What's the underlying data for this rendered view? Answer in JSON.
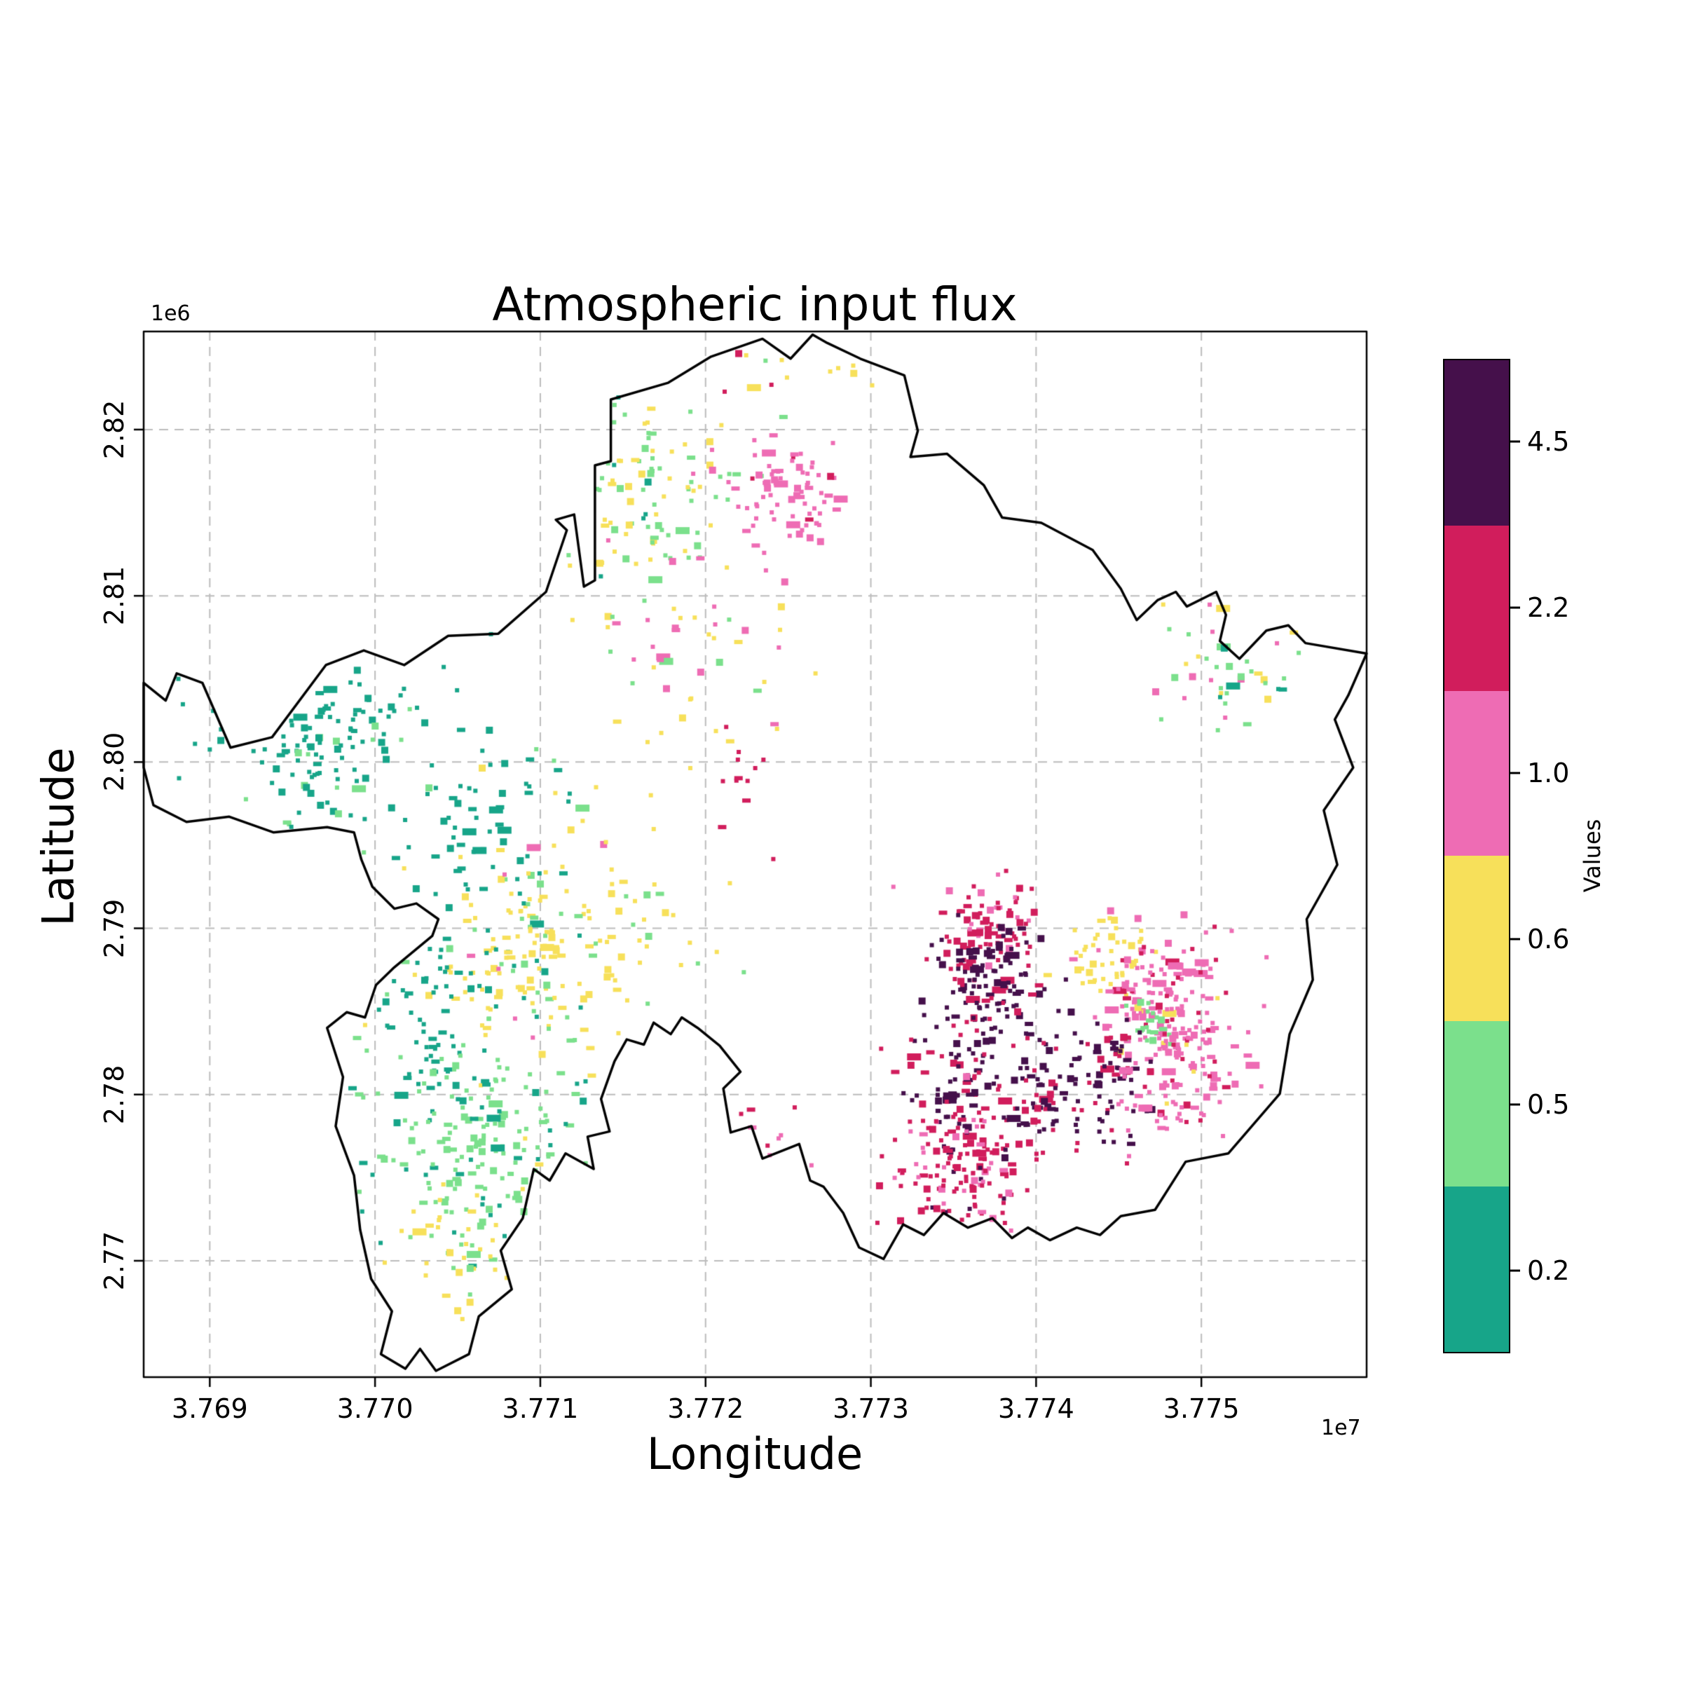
{
  "chart_data": {
    "type": "heatmap",
    "title": "Atmospheric input flux",
    "xlabel": "Longitude",
    "ylabel": "Latitude",
    "x_offset_text": "1e7",
    "y_offset_text": "1e6",
    "xlim": [
      3.7686,
      3.776
    ],
    "ylim": [
      2.763,
      2.8259
    ],
    "xticks": [
      3.769,
      3.77,
      3.771,
      3.772,
      3.773,
      3.774,
      3.775
    ],
    "xtick_labels": [
      "3.769",
      "3.770",
      "3.771",
      "3.772",
      "3.773",
      "3.774",
      "3.775"
    ],
    "yticks": [
      2.77,
      2.78,
      2.79,
      2.8,
      2.81,
      2.82
    ],
    "ytick_labels": [
      "2.77",
      "2.78",
      "2.79",
      "2.80",
      "2.81",
      "2.82"
    ],
    "grid": true,
    "colorbar": {
      "label": "Values",
      "segments_top_to_bottom": [
        {
          "tick": "4.5",
          "color": "#45104b"
        },
        {
          "tick": "2.2",
          "color": "#d11d5c"
        },
        {
          "tick": "1.0",
          "color": "#ee6cb4"
        },
        {
          "tick": "0.6",
          "color": "#f7e05a"
        },
        {
          "tick": "0.5",
          "color": "#7be08c"
        },
        {
          "tick": "0.2",
          "color": "#17a589"
        }
      ]
    },
    "palette": {
      "teal": "#17a589",
      "green": "#7be08c",
      "yellow": "#f7e05a",
      "pink": "#ee6cb4",
      "crimson": "#d11d5c",
      "purple": "#45104b"
    },
    "boundary_color": "#000000",
    "grid_color": "#bcbcbc",
    "boundary": [
      [
        0.0,
        0.336
      ],
      [
        0.018,
        0.353
      ],
      [
        0.027,
        0.327
      ],
      [
        0.048,
        0.336
      ],
      [
        0.071,
        0.398
      ],
      [
        0.105,
        0.388
      ],
      [
        0.149,
        0.319
      ],
      [
        0.18,
        0.305
      ],
      [
        0.213,
        0.319
      ],
      [
        0.249,
        0.291
      ],
      [
        0.29,
        0.289
      ],
      [
        0.329,
        0.249
      ],
      [
        0.346,
        0.19
      ],
      [
        0.337,
        0.18
      ],
      [
        0.352,
        0.175
      ],
      [
        0.36,
        0.244
      ],
      [
        0.369,
        0.238
      ],
      [
        0.369,
        0.128
      ],
      [
        0.382,
        0.124
      ],
      [
        0.382,
        0.065
      ],
      [
        0.429,
        0.049
      ],
      [
        0.464,
        0.024
      ],
      [
        0.506,
        0.007
      ],
      [
        0.529,
        0.026
      ],
      [
        0.547,
        0.003
      ],
      [
        0.559,
        0.011
      ],
      [
        0.586,
        0.026
      ],
      [
        0.622,
        0.042
      ],
      [
        0.633,
        0.095
      ],
      [
        0.627,
        0.12
      ],
      [
        0.657,
        0.117
      ],
      [
        0.687,
        0.147
      ],
      [
        0.702,
        0.178
      ],
      [
        0.734,
        0.183
      ],
      [
        0.776,
        0.209
      ],
      [
        0.799,
        0.246
      ],
      [
        0.812,
        0.276
      ],
      [
        0.829,
        0.257
      ],
      [
        0.844,
        0.249
      ],
      [
        0.853,
        0.263
      ],
      [
        0.877,
        0.249
      ],
      [
        0.885,
        0.271
      ],
      [
        0.88,
        0.296
      ],
      [
        0.896,
        0.313
      ],
      [
        0.918,
        0.286
      ],
      [
        0.936,
        0.281
      ],
      [
        0.95,
        0.298
      ],
      [
        1.0,
        0.308
      ],
      [
        0.985,
        0.348
      ],
      [
        0.974,
        0.371
      ],
      [
        0.989,
        0.417
      ],
      [
        0.965,
        0.458
      ],
      [
        0.976,
        0.51
      ],
      [
        0.951,
        0.562
      ],
      [
        0.956,
        0.62
      ],
      [
        0.937,
        0.672
      ],
      [
        0.929,
        0.729
      ],
      [
        0.887,
        0.786
      ],
      [
        0.852,
        0.794
      ],
      [
        0.827,
        0.84
      ],
      [
        0.799,
        0.846
      ],
      [
        0.782,
        0.864
      ],
      [
        0.763,
        0.857
      ],
      [
        0.741,
        0.869
      ],
      [
        0.723,
        0.857
      ],
      [
        0.71,
        0.867
      ],
      [
        0.694,
        0.848
      ],
      [
        0.674,
        0.857
      ],
      [
        0.654,
        0.843
      ],
      [
        0.638,
        0.864
      ],
      [
        0.621,
        0.854
      ],
      [
        0.605,
        0.887
      ],
      [
        0.585,
        0.876
      ],
      [
        0.572,
        0.843
      ],
      [
        0.556,
        0.818
      ],
      [
        0.545,
        0.812
      ],
      [
        0.536,
        0.777
      ],
      [
        0.506,
        0.791
      ],
      [
        0.497,
        0.76
      ],
      [
        0.48,
        0.766
      ],
      [
        0.474,
        0.724
      ],
      [
        0.488,
        0.708
      ],
      [
        0.471,
        0.683
      ],
      [
        0.453,
        0.666
      ],
      [
        0.44,
        0.656
      ],
      [
        0.431,
        0.672
      ],
      [
        0.417,
        0.661
      ],
      [
        0.409,
        0.682
      ],
      [
        0.395,
        0.677
      ],
      [
        0.385,
        0.698
      ],
      [
        0.374,
        0.734
      ],
      [
        0.381,
        0.765
      ],
      [
        0.363,
        0.77
      ],
      [
        0.368,
        0.801
      ],
      [
        0.345,
        0.786
      ],
      [
        0.332,
        0.812
      ],
      [
        0.319,
        0.801
      ],
      [
        0.31,
        0.848
      ],
      [
        0.292,
        0.879
      ],
      [
        0.301,
        0.916
      ],
      [
        0.274,
        0.942
      ],
      [
        0.266,
        0.978
      ],
      [
        0.239,
        0.994
      ],
      [
        0.226,
        0.973
      ],
      [
        0.214,
        0.992
      ],
      [
        0.194,
        0.978
      ],
      [
        0.203,
        0.937
      ],
      [
        0.186,
        0.906
      ],
      [
        0.177,
        0.859
      ],
      [
        0.172,
        0.807
      ],
      [
        0.157,
        0.76
      ],
      [
        0.163,
        0.713
      ],
      [
        0.15,
        0.666
      ],
      [
        0.166,
        0.651
      ],
      [
        0.181,
        0.656
      ],
      [
        0.19,
        0.625
      ],
      [
        0.204,
        0.609
      ],
      [
        0.236,
        0.578
      ],
      [
        0.241,
        0.562
      ],
      [
        0.223,
        0.547
      ],
      [
        0.205,
        0.552
      ],
      [
        0.187,
        0.531
      ],
      [
        0.178,
        0.505
      ],
      [
        0.172,
        0.479
      ],
      [
        0.15,
        0.474
      ],
      [
        0.106,
        0.479
      ],
      [
        0.07,
        0.464
      ],
      [
        0.035,
        0.469
      ],
      [
        0.008,
        0.453
      ],
      [
        0.0,
        0.417
      ]
    ],
    "clusters": [
      {
        "cx": 0.15,
        "cy": 0.38,
        "sx": 0.05,
        "sy": 0.035,
        "n": 130,
        "colors": {
          "teal": 0.9,
          "green": 0.1
        }
      },
      {
        "cx": 0.28,
        "cy": 0.46,
        "sx": 0.03,
        "sy": 0.04,
        "n": 50,
        "colors": {
          "teal": 1.0
        }
      },
      {
        "cx": 0.32,
        "cy": 0.6,
        "sx": 0.045,
        "sy": 0.045,
        "n": 150,
        "colors": {
          "yellow": 0.75,
          "green": 0.15,
          "pink": 0.05,
          "teal": 0.05
        }
      },
      {
        "cx": 0.24,
        "cy": 0.65,
        "sx": 0.03,
        "sy": 0.045,
        "n": 70,
        "colors": {
          "teal": 1.0
        }
      },
      {
        "cx": 0.28,
        "cy": 0.78,
        "sx": 0.05,
        "sy": 0.05,
        "n": 200,
        "colors": {
          "green": 0.7,
          "teal": 0.25,
          "yellow": 0.05
        }
      },
      {
        "cx": 0.27,
        "cy": 0.88,
        "sx": 0.03,
        "sy": 0.03,
        "n": 45,
        "colors": {
          "yellow": 0.8,
          "green": 0.2
        }
      },
      {
        "cx": 0.41,
        "cy": 0.16,
        "sx": 0.035,
        "sy": 0.05,
        "n": 110,
        "colors": {
          "green": 0.45,
          "yellow": 0.45,
          "teal": 0.1
        }
      },
      {
        "cx": 0.525,
        "cy": 0.16,
        "sx": 0.03,
        "sy": 0.025,
        "n": 80,
        "colors": {
          "pink": 0.9,
          "crimson": 0.1
        }
      },
      {
        "cx": 0.45,
        "cy": 0.3,
        "sx": 0.04,
        "sy": 0.05,
        "n": 50,
        "colors": {
          "pink": 0.5,
          "yellow": 0.4,
          "green": 0.1
        }
      },
      {
        "cx": 0.5,
        "cy": 0.03,
        "sx": 0.02,
        "sy": 0.02,
        "n": 10,
        "colors": {
          "crimson": 0.3,
          "yellow": 0.4,
          "green": 0.3
        }
      },
      {
        "cx": 0.585,
        "cy": 0.035,
        "sx": 0.015,
        "sy": 0.015,
        "n": 8,
        "colors": {
          "yellow": 1.0
        }
      },
      {
        "cx": 0.495,
        "cy": 0.42,
        "sx": 0.012,
        "sy": 0.03,
        "n": 12,
        "colors": {
          "crimson": 1.0
        }
      },
      {
        "cx": 0.695,
        "cy": 0.565,
        "sx": 0.02,
        "sy": 0.025,
        "n": 70,
        "colors": {
          "crimson": 0.85,
          "pink": 0.15
        }
      },
      {
        "cx": 0.69,
        "cy": 0.625,
        "sx": 0.022,
        "sy": 0.03,
        "n": 130,
        "colors": {
          "purple": 0.8,
          "crimson": 0.2
        }
      },
      {
        "cx": 0.67,
        "cy": 0.72,
        "sx": 0.025,
        "sy": 0.035,
        "n": 90,
        "colors": {
          "purple": 0.5,
          "crimson": 0.5
        }
      },
      {
        "cx": 0.675,
        "cy": 0.8,
        "sx": 0.03,
        "sy": 0.035,
        "n": 150,
        "colors": {
          "crimson": 0.7,
          "pink": 0.25,
          "purple": 0.05
        }
      },
      {
        "cx": 0.745,
        "cy": 0.73,
        "sx": 0.02,
        "sy": 0.04,
        "n": 70,
        "colors": {
          "purple": 0.7,
          "crimson": 0.3
        }
      },
      {
        "cx": 0.785,
        "cy": 0.6,
        "sx": 0.02,
        "sy": 0.02,
        "n": 45,
        "colors": {
          "yellow": 1.0
        }
      },
      {
        "cx": 0.835,
        "cy": 0.645,
        "sx": 0.03,
        "sy": 0.035,
        "n": 170,
        "colors": {
          "pink": 0.85,
          "crimson": 0.1,
          "yellow": 0.05
        }
      },
      {
        "cx": 0.825,
        "cy": 0.665,
        "sx": 0.008,
        "sy": 0.012,
        "n": 20,
        "colors": {
          "green": 1.0
        }
      },
      {
        "cx": 0.79,
        "cy": 0.71,
        "sx": 0.018,
        "sy": 0.03,
        "n": 60,
        "colors": {
          "purple": 0.75,
          "crimson": 0.25
        }
      },
      {
        "cx": 0.85,
        "cy": 0.72,
        "sx": 0.025,
        "sy": 0.03,
        "n": 80,
        "colors": {
          "pink": 0.8,
          "crimson": 0.2
        }
      },
      {
        "cx": 0.885,
        "cy": 0.31,
        "sx": 0.03,
        "sy": 0.04,
        "n": 60,
        "colors": {
          "green": 0.4,
          "pink": 0.25,
          "yellow": 0.2,
          "teal": 0.15
        }
      },
      {
        "cx": 0.17,
        "cy": 0.5,
        "sx": 0.09,
        "sy": 0.1,
        "n": 50,
        "colors": {
          "teal": 0.8,
          "green": 0.2
        }
      },
      {
        "cx": 0.38,
        "cy": 0.52,
        "sx": 0.06,
        "sy": 0.06,
        "n": 35,
        "colors": {
          "yellow": 0.7,
          "green": 0.3
        }
      },
      {
        "cx": 0.52,
        "cy": 0.77,
        "sx": 0.03,
        "sy": 0.03,
        "n": 15,
        "colors": {
          "crimson": 0.5,
          "pink": 0.5
        }
      }
    ]
  }
}
